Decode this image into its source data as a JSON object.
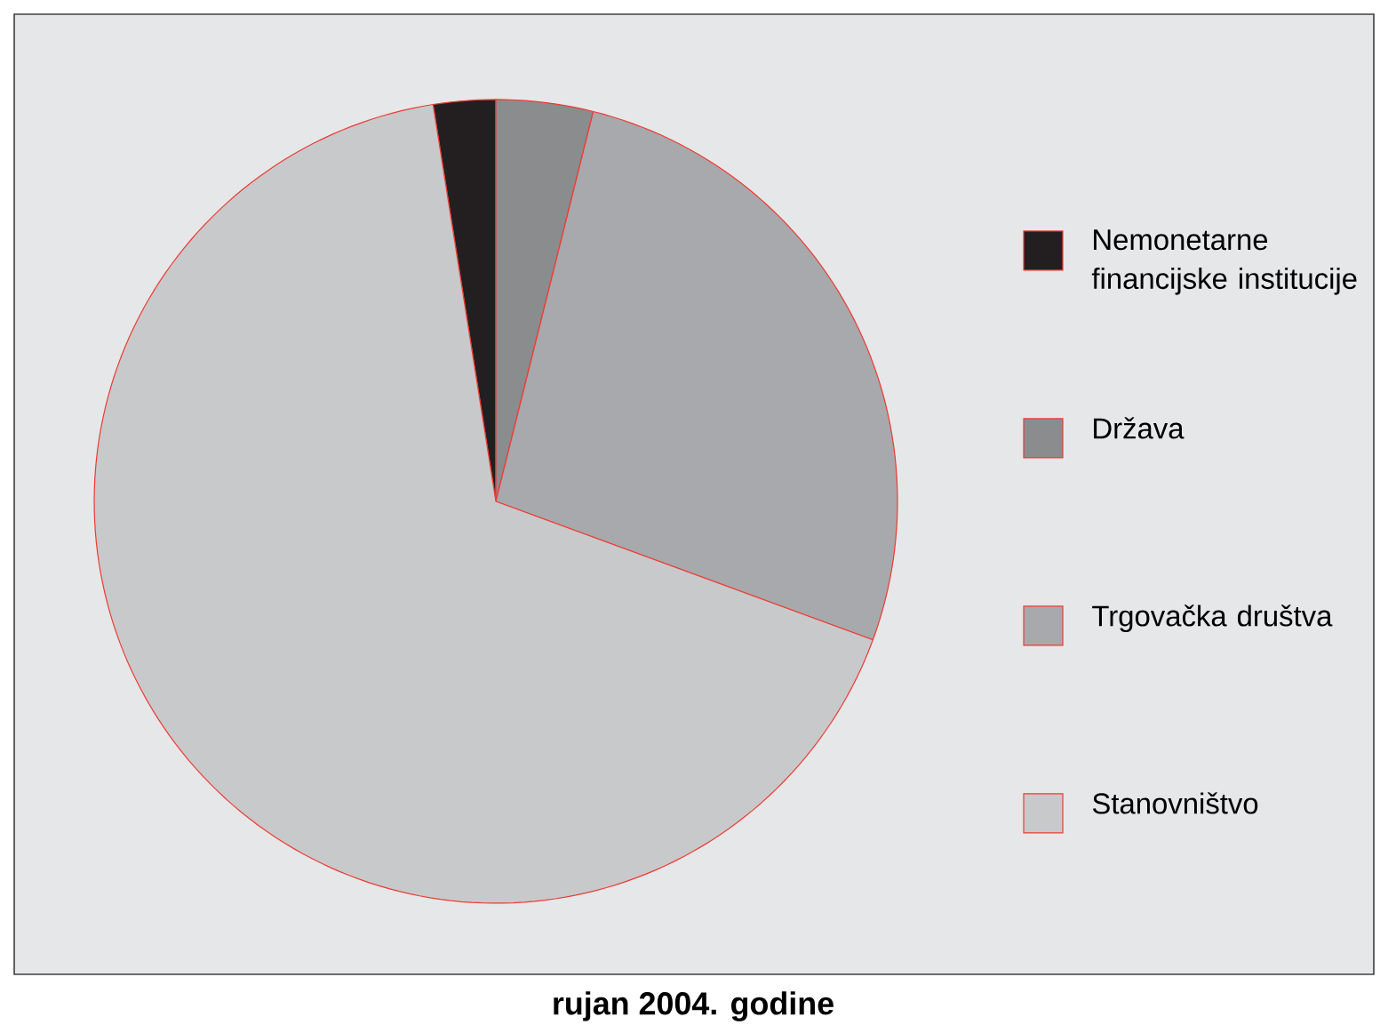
{
  "chart_data": {
    "type": "pie",
    "title": "rujan 2004. godine",
    "categories": [
      "Nemonetarne financijske institucije",
      "Država",
      "Trgovačka društva",
      "Stanovništvo"
    ],
    "values": [
      2.5,
      3.9,
      26.7,
      66.9
    ],
    "colors": [
      "#231f20",
      "#8a8c8e",
      "#a7a9ac",
      "#c8c9cb"
    ],
    "legend": "right"
  }
}
